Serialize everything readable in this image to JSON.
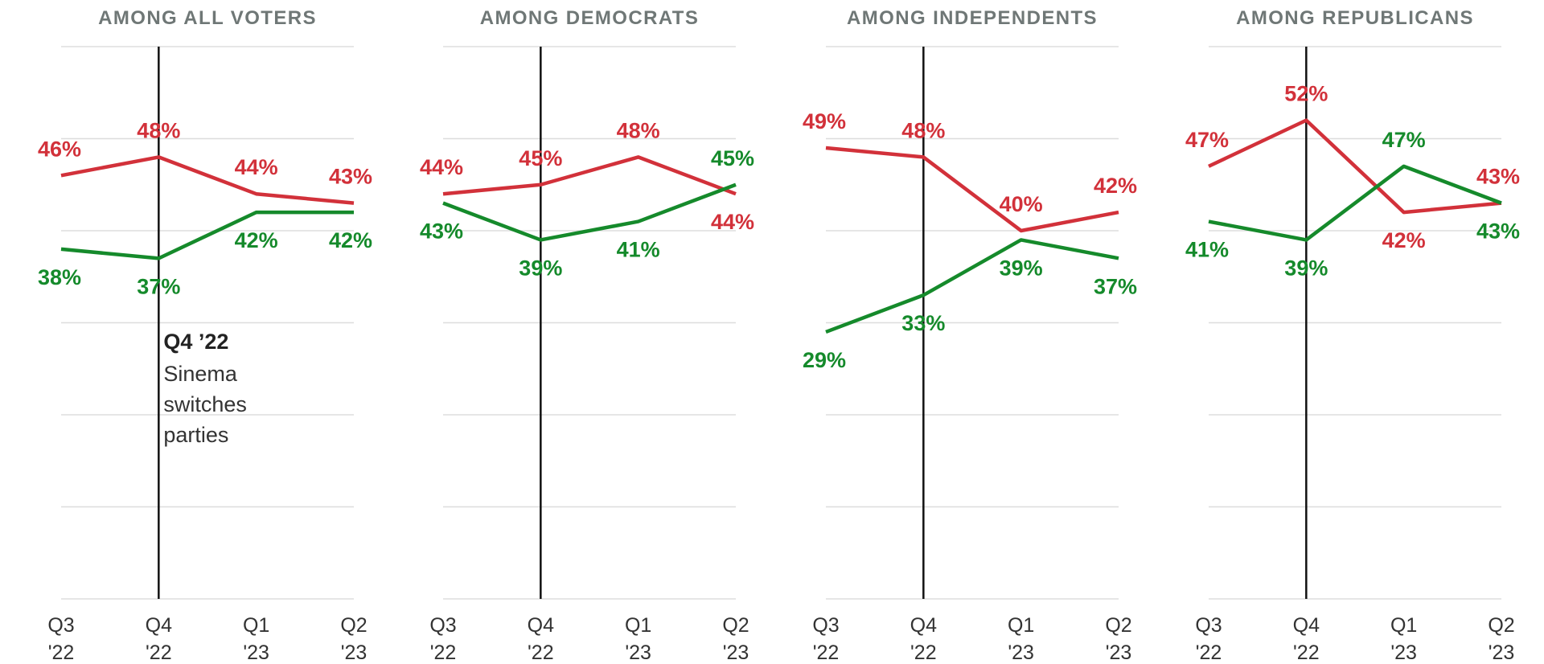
{
  "colors": {
    "red_series": "#d2313a",
    "green_series": "#158a2b",
    "title": "#6f7776",
    "grid": "#dddddd",
    "marker_line": "#111111"
  },
  "chart_data": [
    {
      "type": "line",
      "title": "AMONG ALL VOTERS",
      "x": [
        "Q3 '22",
        "Q4 '22",
        "Q1 '23",
        "Q2 '23"
      ],
      "tick_labels": [
        [
          "Q3",
          "'22"
        ],
        [
          "Q4",
          "'22"
        ],
        [
          "Q1",
          "'23"
        ],
        [
          "Q2",
          "'23"
        ]
      ],
      "series": [
        {
          "color": "#d2313a",
          "values": [
            46,
            48,
            44,
            43
          ],
          "labels": [
            "46%",
            "48%",
            "44%",
            "43%"
          ]
        },
        {
          "color": "#158a2b",
          "values": [
            38,
            37,
            42,
            42
          ],
          "labels": [
            "38%",
            "37%",
            "42%",
            "42%"
          ]
        }
      ],
      "vertical_marker": "Q4 '22",
      "annotation": {
        "title": "Q4 ’22",
        "lines": [
          "Sinema",
          "switches",
          "parties"
        ]
      }
    },
    {
      "type": "line",
      "title": "AMONG DEMOCRATS",
      "x": [
        "Q3 '22",
        "Q4 '22",
        "Q1 '23",
        "Q2 '23"
      ],
      "tick_labels": [
        [
          "Q3",
          "'22"
        ],
        [
          "Q4",
          "'22"
        ],
        [
          "Q1",
          "'23"
        ],
        [
          "Q2",
          "'23"
        ]
      ],
      "series": [
        {
          "color": "#d2313a",
          "values": [
            44,
            45,
            48,
            44
          ],
          "labels": [
            "44%",
            "45%",
            "48%",
            "44%"
          ]
        },
        {
          "color": "#158a2b",
          "values": [
            43,
            39,
            41,
            45
          ],
          "labels": [
            "43%",
            "39%",
            "41%",
            "45%"
          ]
        }
      ],
      "vertical_marker": "Q4 '22"
    },
    {
      "type": "line",
      "title": "AMONG INDEPENDENTS",
      "x": [
        "Q3 '22",
        "Q4 '22",
        "Q1 '23",
        "Q2 '23"
      ],
      "tick_labels": [
        [
          "Q3",
          "'22"
        ],
        [
          "Q4",
          "'22"
        ],
        [
          "Q1",
          "'23"
        ],
        [
          "Q2",
          "'23"
        ]
      ],
      "series": [
        {
          "color": "#d2313a",
          "values": [
            49,
            48,
            40,
            42
          ],
          "labels": [
            "49%",
            "48%",
            "40%",
            "42%"
          ]
        },
        {
          "color": "#158a2b",
          "values": [
            29,
            33,
            39,
            37
          ],
          "labels": [
            "29%",
            "33%",
            "39%",
            "37%"
          ]
        }
      ],
      "vertical_marker": "Q4 '22"
    },
    {
      "type": "line",
      "title": "AMONG REPUBLICANS",
      "x": [
        "Q3 '22",
        "Q4 '22",
        "Q1 '23",
        "Q2 '23"
      ],
      "tick_labels": [
        [
          "Q3",
          "'22"
        ],
        [
          "Q4",
          "'22"
        ],
        [
          "Q1",
          "'23"
        ],
        [
          "Q2",
          "'23"
        ]
      ],
      "series": [
        {
          "color": "#d2313a",
          "values": [
            47,
            52,
            42,
            43
          ],
          "labels": [
            "47%",
            "52%",
            "42%",
            "43%"
          ]
        },
        {
          "color": "#158a2b",
          "values": [
            41,
            39,
            47,
            43
          ],
          "labels": [
            "41%",
            "39%",
            "47%",
            "43%"
          ]
        }
      ],
      "vertical_marker": "Q4 '22"
    }
  ],
  "ylim": [
    0,
    60
  ],
  "grid": true
}
